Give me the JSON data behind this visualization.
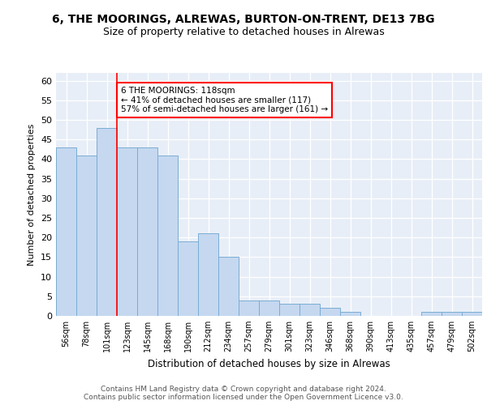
{
  "title1": "6, THE MOORINGS, ALREWAS, BURTON-ON-TRENT, DE13 7BG",
  "title2": "Size of property relative to detached houses in Alrewas",
  "xlabel": "Distribution of detached houses by size in Alrewas",
  "ylabel": "Number of detached properties",
  "categories": [
    "56sqm",
    "78sqm",
    "101sqm",
    "123sqm",
    "145sqm",
    "168sqm",
    "190sqm",
    "212sqm",
    "234sqm",
    "257sqm",
    "279sqm",
    "301sqm",
    "323sqm",
    "346sqm",
    "368sqm",
    "390sqm",
    "413sqm",
    "435sqm",
    "457sqm",
    "479sqm",
    "502sqm"
  ],
  "values": [
    43,
    41,
    48,
    43,
    43,
    41,
    19,
    21,
    15,
    4,
    4,
    3,
    3,
    2,
    1,
    0,
    0,
    0,
    1,
    1,
    1
  ],
  "bar_color": "#c5d8f0",
  "bar_edge_color": "#7aadd4",
  "reference_line_x": 2.5,
  "reference_line_color": "red",
  "annotation_text": "6 THE MOORINGS: 118sqm\n← 41% of detached houses are smaller (117)\n57% of semi-detached houses are larger (161) →",
  "annotation_box_color": "white",
  "annotation_box_edge_color": "red",
  "ylim": [
    0,
    62
  ],
  "yticks": [
    0,
    5,
    10,
    15,
    20,
    25,
    30,
    35,
    40,
    45,
    50,
    55,
    60
  ],
  "background_color": "#e8eef7",
  "footer_text": "Contains HM Land Registry data © Crown copyright and database right 2024.\nContains public sector information licensed under the Open Government Licence v3.0.",
  "title1_fontsize": 10,
  "title2_fontsize": 9,
  "footer_fontsize": 6.5
}
